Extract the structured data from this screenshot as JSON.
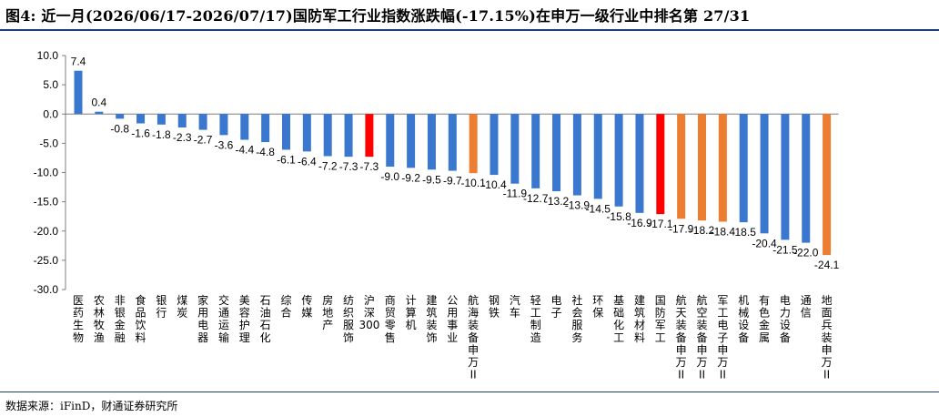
{
  "title": "图4: 近一月(2026/06/17-2026/07/17)国防军工行业指数涨跌幅(-17.15%)在申万一级行业中排名第 27/31",
  "source": "数据来源：iFinD，财通证券研究所",
  "colors": {
    "default": "#3a78d0",
    "highlight_red": "#ff0000",
    "highlight_orange": "#ed7d31",
    "rule": "#1f3f7a"
  },
  "chart_data": {
    "type": "bar",
    "ylim": [
      -30,
      10
    ],
    "yticks": [
      "10.0",
      "5.0",
      "0.0",
      "-5.0",
      "-10.0",
      "-15.0",
      "-20.0",
      "-25.0",
      "-30.0"
    ],
    "ytick_values": [
      10,
      5,
      0,
      -5,
      -10,
      -15,
      -20,
      -25,
      -30
    ],
    "grid": false,
    "legend": "none",
    "categories": [
      "医药生物",
      "农林牧渔",
      "非银金融",
      "食品饮料",
      "银行",
      "煤炭",
      "家用电器",
      "交通运输",
      "美容护理",
      "石油石化",
      "综合",
      "传媒",
      "房地产",
      "纺织服饰",
      "沪深300",
      "商贸零售",
      "计算机",
      "建筑装饰",
      "公用事业",
      "航海装备Ⅱ(申万)",
      "钢铁",
      "汽车",
      "轻工制造",
      "电子",
      "社会服务",
      "环保",
      "基础化工",
      "建筑材料",
      "国防军工",
      "航天装备Ⅱ(申万)",
      "航空装备Ⅱ(申万)",
      "军工电子Ⅱ(申万)",
      "机械设备",
      "有色金属",
      "电力设备",
      "通信",
      "地面兵装Ⅱ(申万)"
    ],
    "category_lines": [
      [
        "医",
        "药",
        "生",
        "物"
      ],
      [
        "农",
        "林",
        "牧",
        "渔"
      ],
      [
        "非",
        "银",
        "金",
        "融"
      ],
      [
        "食",
        "品",
        "饮",
        "料"
      ],
      [
        "银",
        "行"
      ],
      [
        "煤",
        "炭"
      ],
      [
        "家",
        "用",
        "电",
        "器"
      ],
      [
        "交",
        "通",
        "运",
        "输"
      ],
      [
        "美",
        "容",
        "护",
        "理"
      ],
      [
        "石",
        "油",
        "石",
        "化"
      ],
      [
        "综",
        "合"
      ],
      [
        "传",
        "媒"
      ],
      [
        "房",
        "地",
        "产"
      ],
      [
        "纺",
        "织",
        "服",
        "饰"
      ],
      [
        "沪",
        "深",
        "300"
      ],
      [
        "商",
        "贸",
        "零",
        "售"
      ],
      [
        "计",
        "算",
        "机"
      ],
      [
        "建",
        "筑",
        "装",
        "饰"
      ],
      [
        "公",
        "用",
        "事",
        "业"
      ],
      [
        "航",
        "海",
        "装",
        "备",
        "申",
        "万",
        "II"
      ],
      [
        "钢",
        "铁"
      ],
      [
        "汽",
        "车"
      ],
      [
        "轻",
        "工",
        "制",
        "造"
      ],
      [
        "电",
        "子"
      ],
      [
        "社",
        "会",
        "服",
        "务"
      ],
      [
        "环",
        "保"
      ],
      [
        "基",
        "础",
        "化",
        "工"
      ],
      [
        "建",
        "筑",
        "材",
        "料"
      ],
      [
        "国",
        "防",
        "军",
        "工"
      ],
      [
        "航",
        "天",
        "装",
        "备",
        "申",
        "万",
        "II"
      ],
      [
        "航",
        "空",
        "装",
        "备",
        "申",
        "万",
        "II"
      ],
      [
        "军",
        "工",
        "电",
        "子",
        "申",
        "万",
        "II"
      ],
      [
        "机",
        "械",
        "设",
        "备"
      ],
      [
        "有",
        "色",
        "金",
        "属"
      ],
      [
        "电",
        "力",
        "设",
        "备"
      ],
      [
        "通",
        "信"
      ],
      [
        "地",
        "面",
        "兵",
        "装",
        "申",
        "万",
        "II"
      ]
    ],
    "values": [
      7.4,
      0.4,
      -0.8,
      -1.6,
      -1.8,
      -2.3,
      -2.7,
      -3.6,
      -4.4,
      -4.8,
      -6.1,
      -6.4,
      -7.2,
      -7.3,
      -7.3,
      -9.0,
      -9.2,
      -9.5,
      -9.7,
      -10.1,
      -10.4,
      -11.9,
      -12.7,
      -13.2,
      -13.9,
      -14.5,
      -15.8,
      -16.9,
      -17.1,
      -17.9,
      -18.2,
      -18.4,
      -18.5,
      -20.4,
      -21.5,
      -22.0,
      -24.1
    ],
    "labels": [
      "7.4",
      "0.4",
      "-0.8",
      "-1.6",
      "-1.8",
      "-2.3",
      "-2.7",
      "-3.6",
      "-4.4",
      "-4.8",
      "-6.1",
      "-6.4",
      "-7.2",
      "-7.3",
      "-7.3",
      "-9.0",
      "-9.2",
      "-9.5",
      "-9.7",
      "-10.1",
      "-10.4",
      "-11.9",
      "-12.7",
      "-13.2",
      "-13.9",
      "-14.5",
      "-15.8",
      "-16.9",
      "-17.1",
      "-17.9",
      "-18.2",
      "-18.4",
      "-18.5",
      "-20.4",
      "-21.5",
      "-22.0",
      "-24.1"
    ],
    "bar_colors": [
      "default",
      "default",
      "default",
      "default",
      "default",
      "default",
      "default",
      "default",
      "default",
      "default",
      "default",
      "default",
      "default",
      "default",
      "highlight_red",
      "default",
      "default",
      "default",
      "default",
      "highlight_orange",
      "default",
      "default",
      "default",
      "default",
      "default",
      "default",
      "default",
      "default",
      "highlight_red",
      "highlight_orange",
      "highlight_orange",
      "highlight_orange",
      "default",
      "default",
      "default",
      "default",
      "highlight_orange"
    ]
  }
}
